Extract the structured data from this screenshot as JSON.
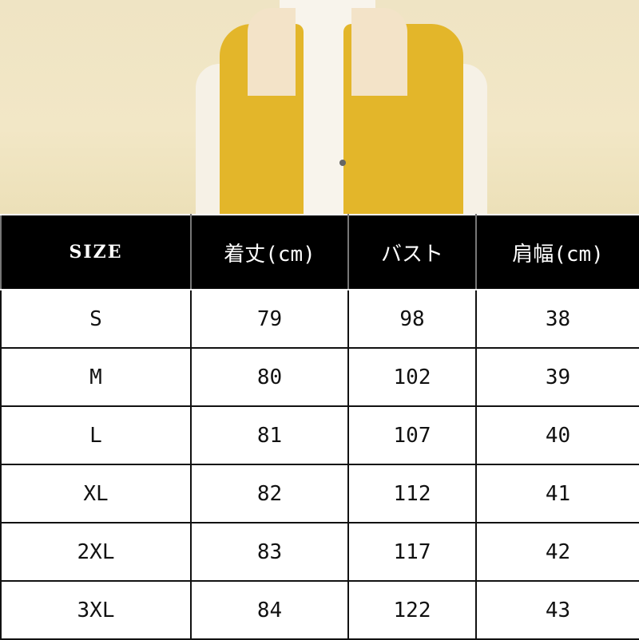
{
  "headers": [
    "SIZE",
    "着丈(cm)",
    "バスト",
    "肩幅(cm)"
  ],
  "rows": [
    [
      "S",
      "79",
      "98",
      "38"
    ],
    [
      "M",
      "80",
      "102",
      "39"
    ],
    [
      "L",
      "81",
      "107",
      "40"
    ],
    [
      "XL",
      "82",
      "112",
      "41"
    ],
    [
      "2XL",
      "83",
      "117",
      "42"
    ],
    [
      "3XL",
      "84",
      "122",
      "43"
    ]
  ],
  "colors": {
    "header_bg": "#000000",
    "header_text": "#ffffff",
    "vest": "#e3b62a",
    "background": "#efe4c4"
  }
}
